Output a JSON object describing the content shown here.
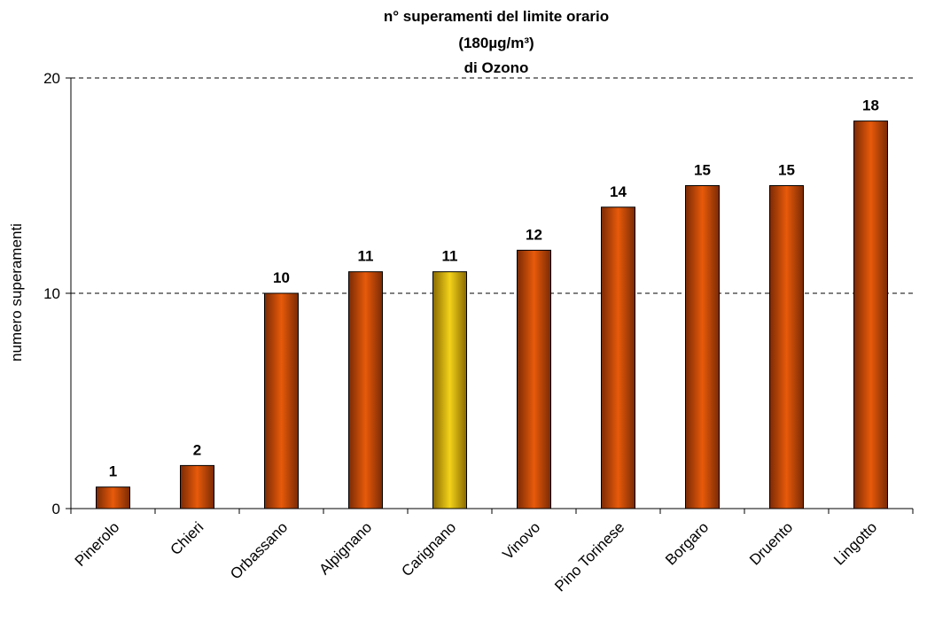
{
  "chart_data": {
    "type": "bar",
    "title": [
      "n° superamenti del limite orario",
      "(180µg/m³)",
      "di Ozono"
    ],
    "ylabel": "numero superamenti",
    "xlabel": "",
    "ylim": [
      0,
      20
    ],
    "yticks": [
      0,
      10,
      20
    ],
    "grid": true,
    "categories": [
      "Pinerolo",
      "Chieri",
      "Orbassano",
      "Alpignano",
      "Carignano",
      "Vinovo",
      "Pino Torinese",
      "Borgaro",
      "Druento",
      "Lingotto"
    ],
    "values": [
      1,
      2,
      10,
      11,
      11,
      12,
      14,
      15,
      15,
      18
    ],
    "highlight_index": 4,
    "colors": {
      "bar_dark": "#7a2a05",
      "bar_mid": "#e85a0a",
      "highlight_dark": "#8a6a00",
      "highlight_mid": "#f3d21a",
      "bar_outline": "#000000"
    }
  }
}
